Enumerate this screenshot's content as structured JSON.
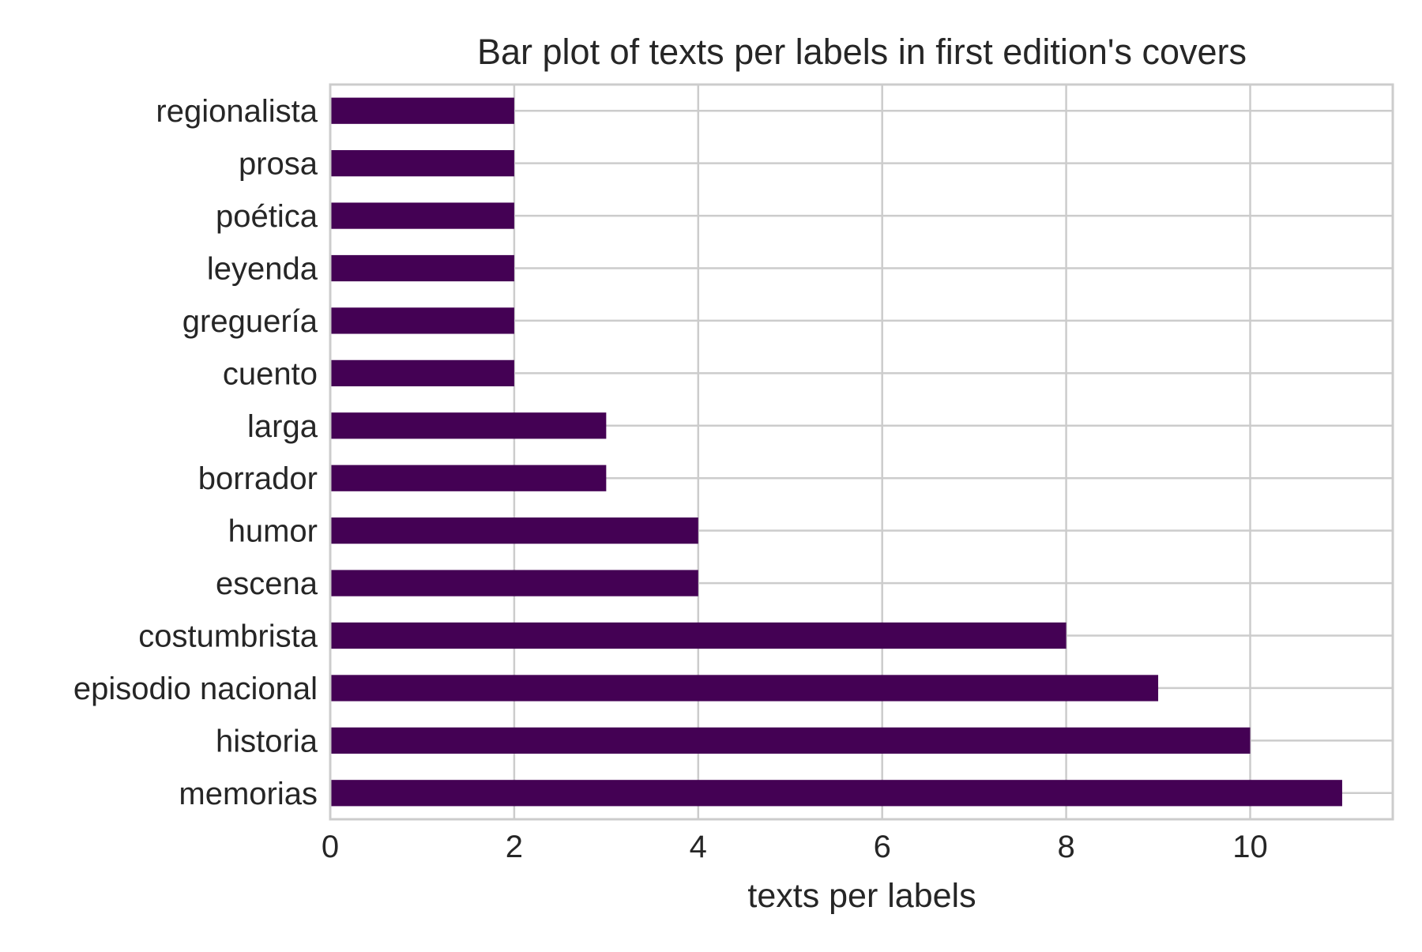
{
  "chart_data": {
    "type": "bar",
    "orientation": "horizontal",
    "title": "Bar plot of texts per labels in first edition's covers",
    "xlabel": "texts per labels",
    "ylabel": "",
    "categories": [
      "memorias",
      "historia",
      "episodio nacional",
      "costumbrista",
      "escena",
      "humor",
      "borrador",
      "larga",
      "cuento",
      "greguería",
      "leyenda",
      "poética",
      "prosa",
      "regionalista"
    ],
    "values": [
      11,
      10,
      9,
      8,
      4,
      4,
      3,
      3,
      2,
      2,
      2,
      2,
      2,
      2
    ],
    "xlim": [
      0,
      11.55
    ],
    "xticks": [
      0,
      2,
      4,
      6,
      8,
      10
    ],
    "xtick_labels": [
      "0",
      "2",
      "4",
      "6",
      "8",
      "10"
    ],
    "grid": true,
    "bar_color": "#440154",
    "grid_color": "#cccccc",
    "axes_edge_color": "#cccccc",
    "text_color": "#262626"
  }
}
